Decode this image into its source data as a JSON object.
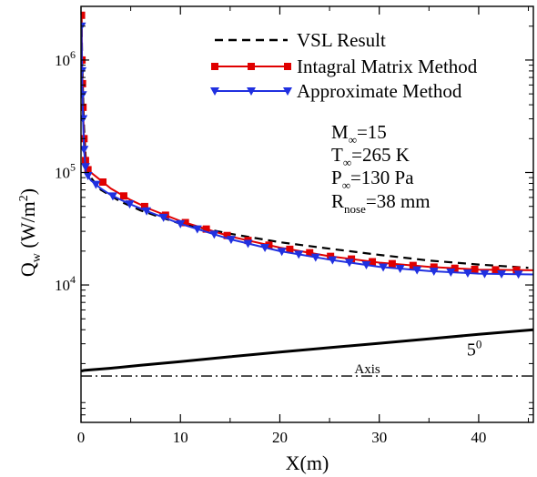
{
  "chart_data": {
    "type": "line",
    "title": "",
    "xlabel": "X(m)",
    "ylabel": {
      "base": "Q",
      "sub": "w",
      "rest": "(W/m",
      "sup": "2",
      "close": ")"
    },
    "xlim": [
      0,
      45.5
    ],
    "ylim": [
      600,
      3000000
    ],
    "yscale": "log",
    "grid": false,
    "x_ticks": [
      0,
      10,
      20,
      30,
      40
    ],
    "x_tick_labels": [
      "0",
      "10",
      "20",
      "30",
      "40"
    ],
    "y_ticks": [
      10000,
      100000,
      1000000
    ],
    "y_tick_labels": [
      {
        "base": "10",
        "exp": "4"
      },
      {
        "base": "10",
        "exp": "5"
      },
      {
        "base": "10",
        "exp": "6"
      }
    ],
    "legend_position": "top-right",
    "series": [
      {
        "name": "VSL Result",
        "color": "#000000",
        "style": "dashed",
        "marker": "none",
        "x": [
          0.05,
          0.1,
          0.2,
          0.3,
          0.5,
          1,
          2,
          4,
          6,
          8,
          10,
          15,
          20,
          25,
          30,
          35,
          40,
          45
        ],
        "y": [
          2500000,
          1200000,
          500000,
          250000,
          120000,
          90000,
          70000,
          55000,
          46000,
          40000,
          35000,
          28500,
          24000,
          21000,
          18500,
          16500,
          15200,
          14200
        ]
      },
      {
        "name": "Intagral Matrix Method",
        "color": "#e00000",
        "style": "solid",
        "marker": "square",
        "x": [
          0.05,
          0.1,
          0.2,
          0.3,
          0.5,
          1,
          2,
          3,
          5,
          7,
          10,
          15,
          20,
          25,
          30,
          35,
          40,
          45.5
        ],
        "y": [
          2500000,
          1000000,
          380000,
          200000,
          110000,
          100000,
          85000,
          72000,
          57000,
          47000,
          37000,
          27000,
          21500,
          18000,
          15800,
          14500,
          13700,
          13500
        ],
        "marker_x": [
          0.05,
          0.1,
          0.15,
          0.2,
          0.3,
          0.45,
          0.7,
          2.2,
          4.3,
          6.4,
          8.5,
          10.5,
          12.6,
          14.7,
          16.8,
          18.9,
          21,
          23,
          25.1,
          27.2,
          29.3,
          31.3,
          33.4,
          35.5,
          37.6,
          39.6,
          41.7,
          43.8
        ]
      },
      {
        "name": "Approximate Method",
        "color": "#2030e0",
        "style": "solid",
        "marker": "triangle-down",
        "x": [
          0.05,
          0.1,
          0.2,
          0.3,
          0.5,
          1,
          2,
          3,
          5,
          7,
          10,
          15,
          20,
          25,
          30,
          35,
          40,
          45.5
        ],
        "y": [
          2000000,
          800000,
          300000,
          160000,
          100000,
          85000,
          72000,
          63000,
          52000,
          44000,
          35000,
          25500,
          20000,
          16800,
          14500,
          13300,
          12600,
          12400
        ],
        "marker_x": [
          0.05,
          0.1,
          0.15,
          0.2,
          0.3,
          0.45,
          0.7,
          1.5,
          3.2,
          4.9,
          6.6,
          8.3,
          10,
          11.7,
          13.4,
          15.1,
          16.8,
          18.5,
          20.2,
          21.9,
          23.6,
          25.3,
          27,
          28.7,
          30.4,
          32.1,
          33.8,
          35.5,
          37.2,
          38.9,
          40.6,
          42.3,
          44
        ]
      }
    ],
    "geometry": {
      "body_x": [
        0,
        0.05,
        0.3,
        1,
        3,
        6,
        10,
        15,
        20,
        25,
        30,
        35,
        40,
        45.5
      ],
      "body_y": [
        1700,
        1720,
        1740,
        1760,
        1820,
        1930,
        2080,
        2300,
        2530,
        2770,
        3030,
        3320,
        3640,
        4000
      ],
      "axis_y": 1550,
      "angle_label": {
        "base": "5",
        "sup": "0",
        "x": 38.8,
        "y": 2350
      },
      "axis_label": {
        "text": "Axis",
        "x": 27.5,
        "y": 1640
      }
    },
    "annotations": [
      {
        "base": "M",
        "sub": "∞",
        "rest": "=15"
      },
      {
        "base": "T",
        "sub": "∞",
        "rest": "=265 K"
      },
      {
        "base": "P",
        "sub": "∞",
        "rest": "=130 Pa"
      },
      {
        "base": "R",
        "sub": "nose",
        "rest": "=38 mm"
      }
    ]
  }
}
